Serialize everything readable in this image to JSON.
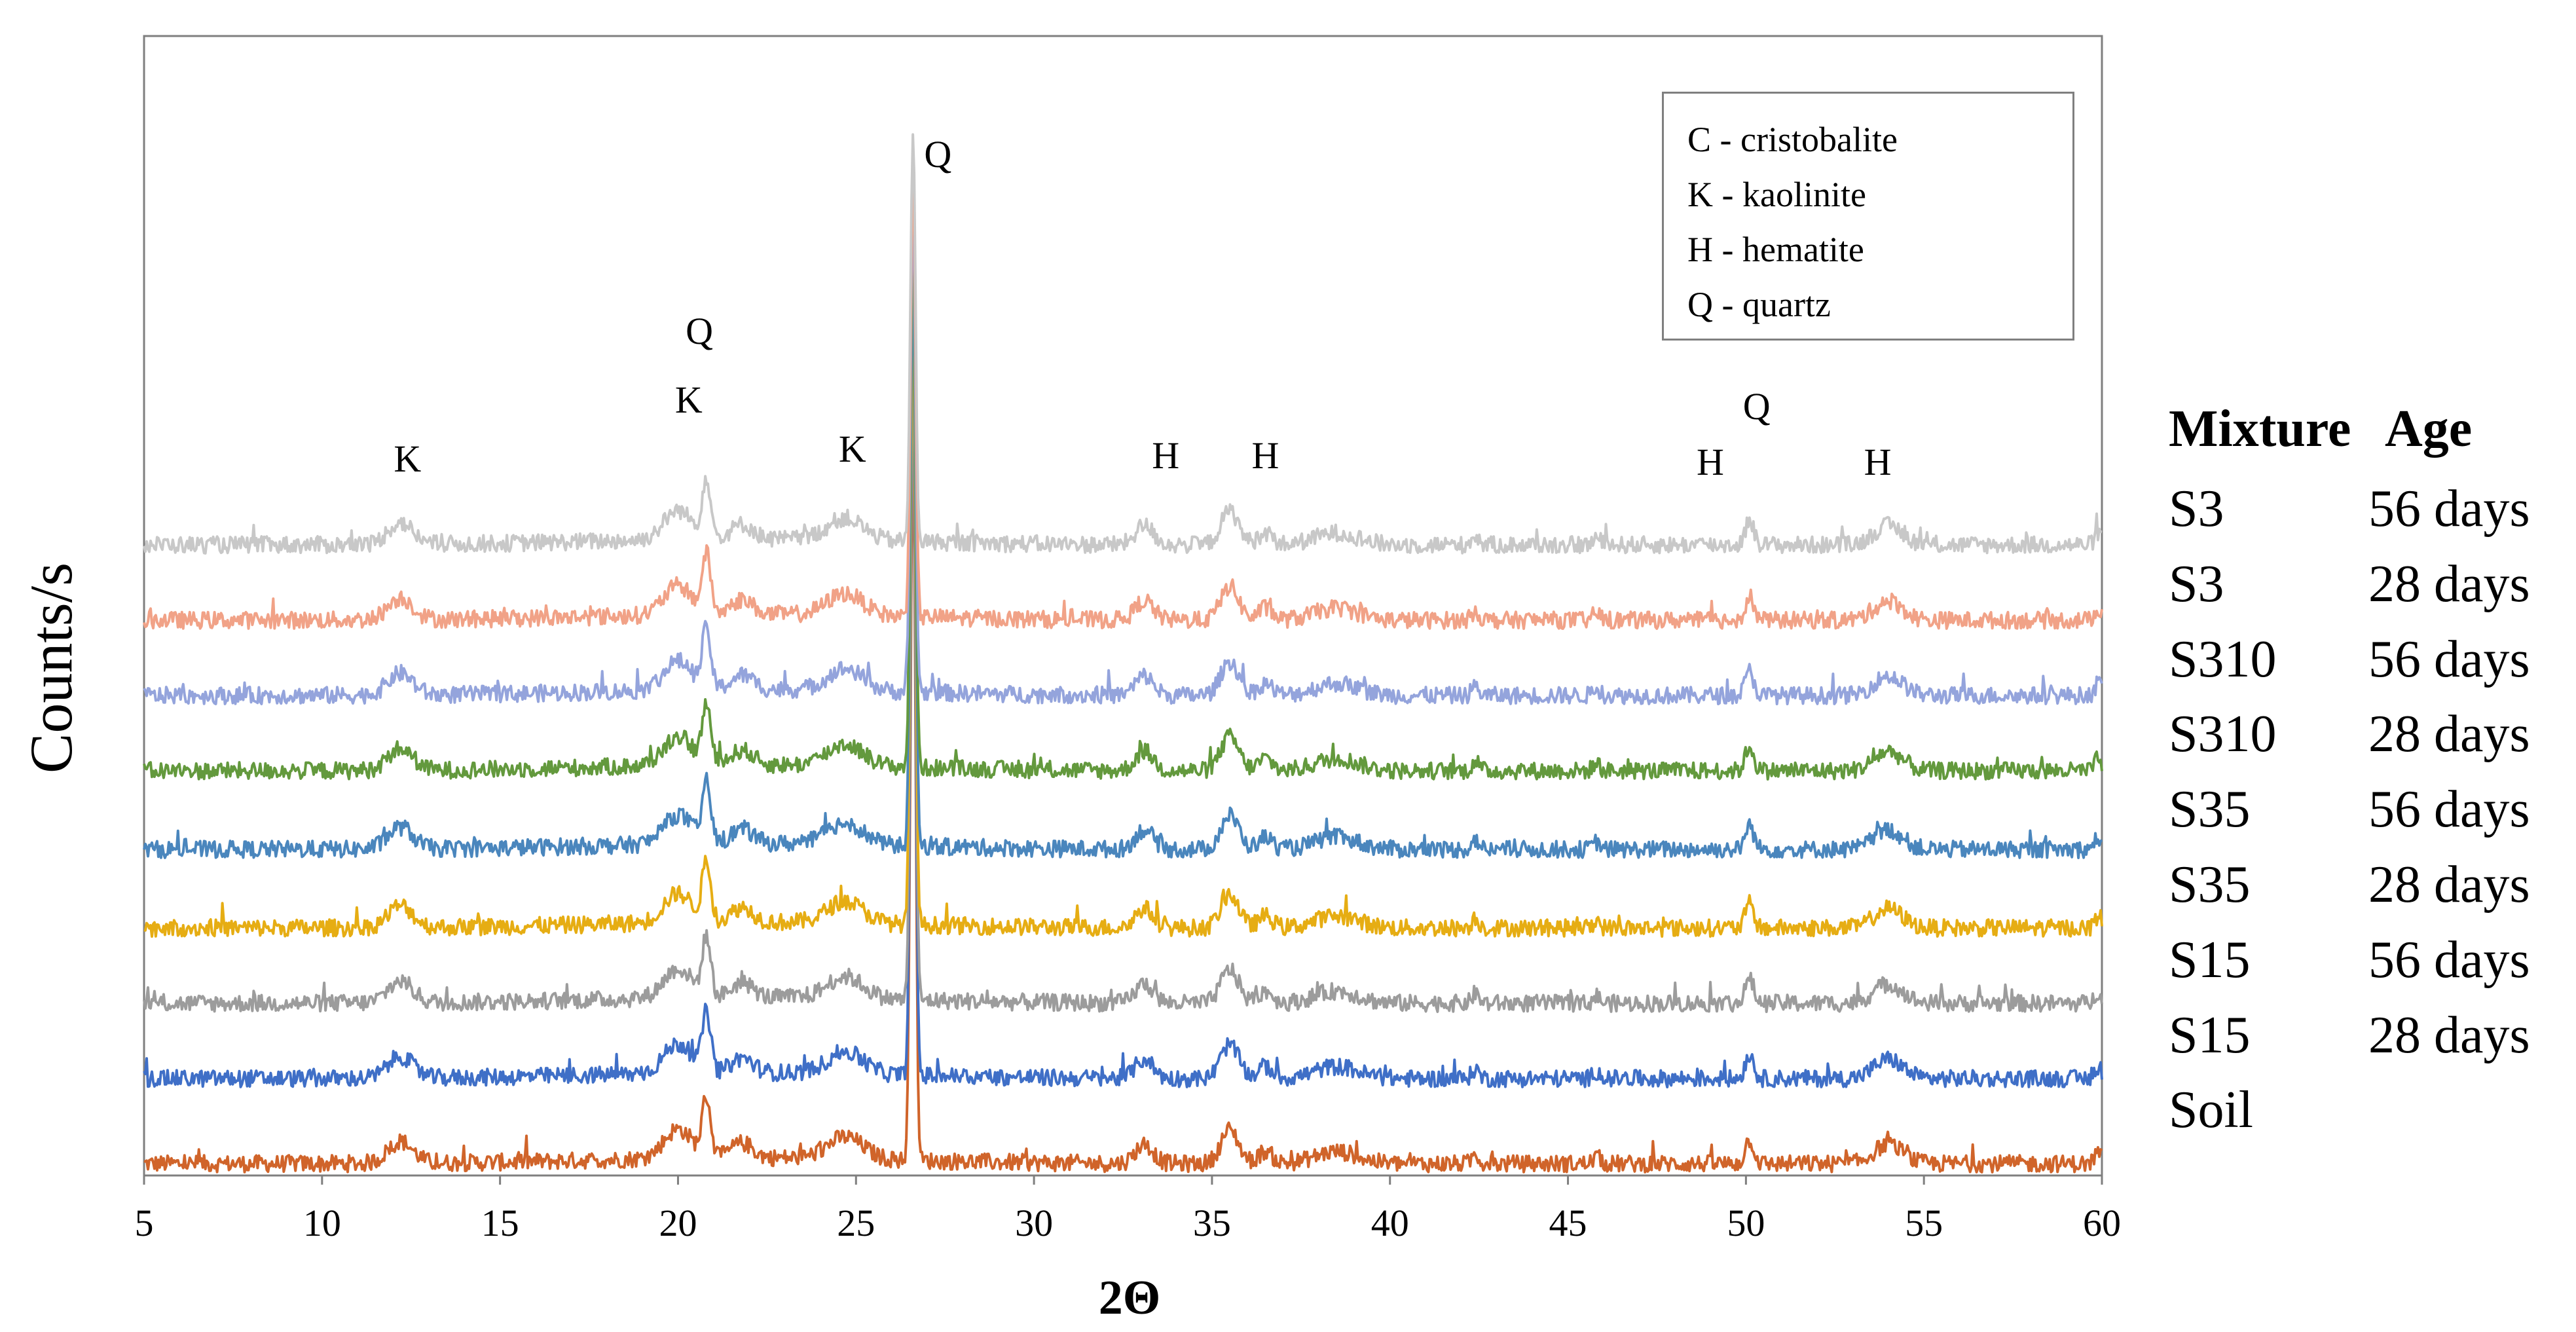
{
  "chart_data": {
    "type": "line",
    "title": "",
    "xlabel": "2Θ",
    "ylabel": "Counts/s",
    "xlim": [
      5,
      60
    ],
    "xticks": [
      5,
      10,
      15,
      20,
      25,
      30,
      35,
      40,
      45,
      50,
      55,
      60
    ],
    "x_tick_labels": [
      "5",
      "10",
      "15",
      "20",
      "25",
      "30",
      "35",
      "40",
      "45",
      "50",
      "55",
      "60"
    ],
    "y_ticks_shown": false,
    "grid": false,
    "series": [
      {
        "name": "Soil",
        "color": "#d0642a",
        "offset_index": 0
      },
      {
        "name": "S15 28 days",
        "color": "#3f6fc7",
        "offset_index": 1
      },
      {
        "name": "S15 56 days",
        "color": "#9c9c9c",
        "offset_index": 2
      },
      {
        "name": "S35 28 days",
        "color": "#e6ad13",
        "offset_index": 3
      },
      {
        "name": "S35 56 days",
        "color": "#4a86bd",
        "offset_index": 4
      },
      {
        "name": "S310 28 days",
        "color": "#63993d",
        "offset_index": 5
      },
      {
        "name": "S310 56 days",
        "color": "#94a4dc",
        "offset_index": 6
      },
      {
        "name": "S3 28 days",
        "color": "#f1a287",
        "offset_index": 7
      },
      {
        "name": "S3 56 days",
        "color": "#c8c8c8",
        "offset_index": 8
      }
    ],
    "peaks": [
      {
        "x": 12.2,
        "height": 0.9,
        "width": 0.35
      },
      {
        "x": 20.0,
        "height": 1.2,
        "width": 0.4
      },
      {
        "x": 20.8,
        "height": 2.4,
        "width": 0.12
      },
      {
        "x": 21.8,
        "height": 0.6,
        "width": 0.3
      },
      {
        "x": 24.7,
        "height": 0.9,
        "width": 0.5
      },
      {
        "x": 26.6,
        "height": 30.0,
        "width": 0.07
      },
      {
        "x": 33.1,
        "height": 0.8,
        "width": 0.25
      },
      {
        "x": 35.5,
        "height": 1.4,
        "width": 0.25
      },
      {
        "x": 36.5,
        "height": 0.5,
        "width": 0.2
      },
      {
        "x": 38.5,
        "height": 0.5,
        "width": 0.6
      },
      {
        "x": 42.4,
        "height": 0.4,
        "width": 0.1
      },
      {
        "x": 45.8,
        "height": 0.3,
        "width": 0.1
      },
      {
        "x": 50.1,
        "height": 1.0,
        "width": 0.12
      },
      {
        "x": 54.0,
        "height": 0.8,
        "width": 0.4
      },
      {
        "x": 59.9,
        "height": 0.5,
        "width": 0.1
      }
    ],
    "peak_labels": [
      {
        "text": "K",
        "x": 12.4
      },
      {
        "text": "Q",
        "x": 20.6
      },
      {
        "text": "K",
        "x": 20.3
      },
      {
        "text": "K",
        "x": 24.9
      },
      {
        "text": "Q",
        "x": 27.3
      },
      {
        "text": "H",
        "x": 33.7
      },
      {
        "text": "H",
        "x": 36.5
      },
      {
        "text": "H",
        "x": 49.0
      },
      {
        "text": "Q",
        "x": 50.3
      },
      {
        "text": "H",
        "x": 53.7
      }
    ],
    "legend": {
      "entries": [
        "C - cristobalite",
        "K -  kaolinite",
        "H - hematite",
        "Q - quartz"
      ],
      "placement": "top-right"
    }
  },
  "sample_table": {
    "headers": [
      "Mixture",
      "Age"
    ],
    "rows": [
      {
        "mixture": "S3",
        "age": "56 days"
      },
      {
        "mixture": "S3",
        "age": "28 days"
      },
      {
        "mixture": "S310",
        "age": "56 days"
      },
      {
        "mixture": "S310",
        "age": "28 days"
      },
      {
        "mixture": "S35",
        "age": "56 days"
      },
      {
        "mixture": "S35",
        "age": "28 days"
      },
      {
        "mixture": "S15",
        "age": "56 days"
      },
      {
        "mixture": "S15",
        "age": "28 days"
      },
      {
        "mixture": "Soil",
        "age": ""
      }
    ]
  }
}
